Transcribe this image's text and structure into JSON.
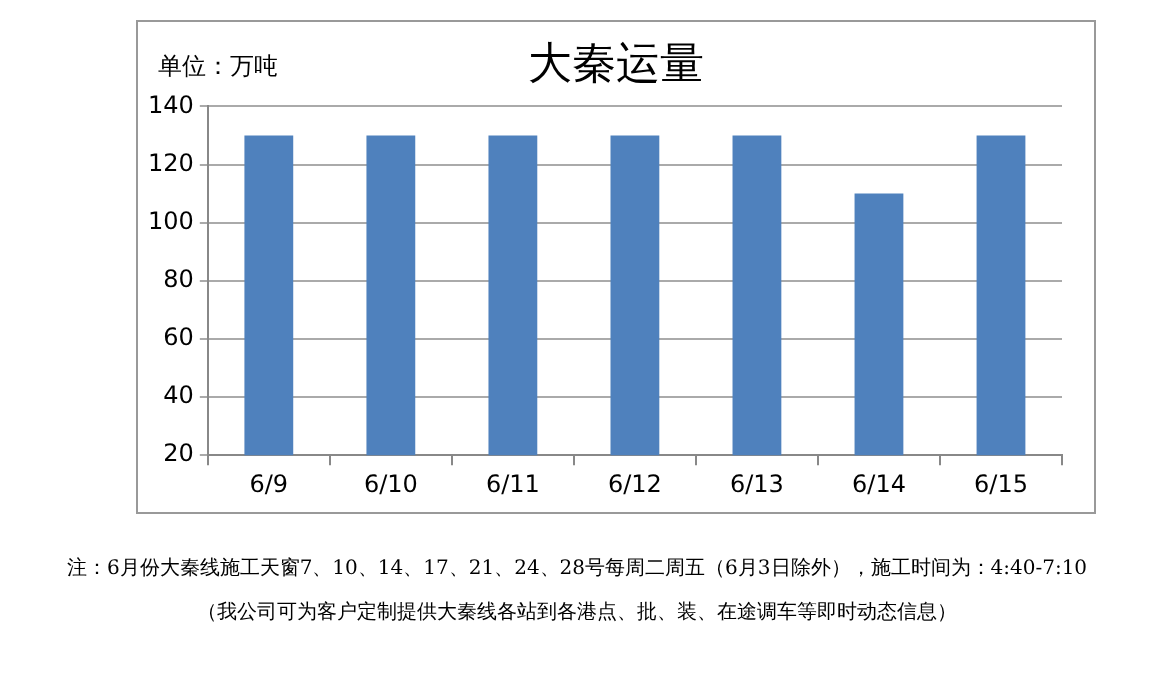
{
  "chart_data": {
    "type": "bar",
    "title": "大秦运量",
    "ylabel": "单位：万吨",
    "categories": [
      "6/9",
      "6/10",
      "6/11",
      "6/12",
      "6/13",
      "6/14",
      "6/15"
    ],
    "values": [
      130,
      130,
      130,
      130,
      130,
      110,
      130
    ],
    "color": "#4f81bd",
    "ylim": [
      20,
      140
    ],
    "yticks": [
      20,
      40,
      60,
      80,
      100,
      120,
      140
    ],
    "grid": "y",
    "legend": false,
    "annotations": [
      "注：6月份大秦线施工天窗7、10、14、17、21、24、28号每周二周五（6月3日除外），施工时间为：4:40-7:10",
      "（我公司可为客户定制提供大秦线各站到各港点、批、装、在途调车等即时动态信息）"
    ]
  }
}
